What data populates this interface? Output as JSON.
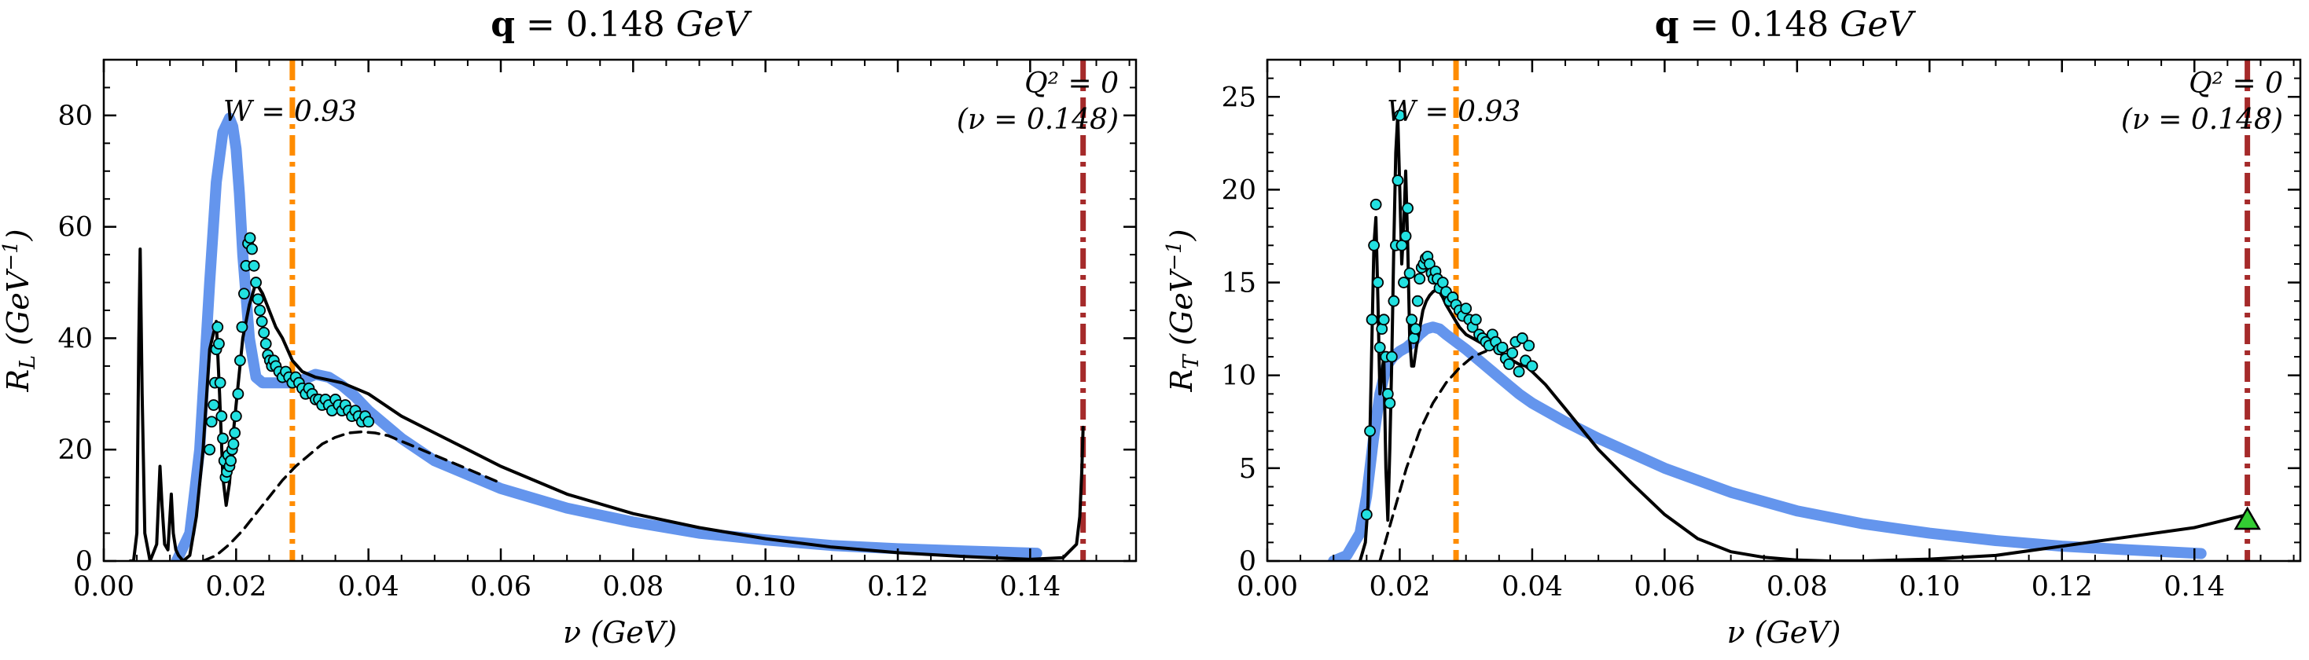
{
  "chart_data": [
    {
      "type": "line",
      "title": "q = 0.148 GeV",
      "title_bold": "q",
      "title_rest": " = 0.148 ",
      "title_unit": "GeV",
      "xlabel": "ν (GeV)",
      "ylabel": "R_L (GeV^-1)",
      "ylabel_main": "R",
      "ylabel_sub": "L",
      "ylabel_rest": " (GeV",
      "ylabel_sup": "−1",
      "ylabel_close": ")",
      "xlim": [
        0.0,
        0.156
      ],
      "ylim": [
        0,
        90
      ],
      "xticks": [
        "0.00",
        "0.02",
        "0.04",
        "0.06",
        "0.08",
        "0.10",
        "0.12",
        "0.14"
      ],
      "xtick_values": [
        0.0,
        0.02,
        0.04,
        0.06,
        0.08,
        0.1,
        0.12,
        0.14
      ],
      "yticks": [
        "0",
        "20",
        "40",
        "60",
        "80"
      ],
      "ytick_values": [
        0,
        20,
        40,
        60,
        80
      ],
      "vlines": [
        {
          "x": 0.0285,
          "color": "#ff8c00",
          "style": "dashdot",
          "label": "W = 0.93"
        },
        {
          "x": 0.148,
          "color": "#a52a2a",
          "style": "dashdot",
          "label_line1": "Q² = 0",
          "label_line2": "(ν = 0.148)"
        }
      ],
      "series": [
        {
          "style": "thick",
          "color": "#6495ed",
          "x": [
            0.011,
            0.013,
            0.0145,
            0.016,
            0.017,
            0.018,
            0.019,
            0.0195,
            0.02,
            0.0205,
            0.021,
            0.022,
            0.023,
            0.024,
            0.025,
            0.026,
            0.027,
            0.0285,
            0.03,
            0.032,
            0.034,
            0.036,
            0.038,
            0.04,
            0.045,
            0.05,
            0.06,
            0.07,
            0.08,
            0.09,
            0.1,
            0.11,
            0.12,
            0.13,
            0.141
          ],
          "y": [
            0,
            5,
            20,
            50,
            68,
            77,
            79.5,
            78,
            74,
            66,
            55,
            40,
            33,
            32,
            32,
            32,
            32,
            32,
            32.5,
            33.5,
            33,
            31.5,
            29.5,
            27,
            22,
            18,
            13,
            9.5,
            7,
            5,
            3.8,
            2.8,
            2.2,
            1.8,
            1.4
          ]
        },
        {
          "style": "solid",
          "color": "#000000",
          "x": [
            0.004,
            0.0045,
            0.005,
            0.0053,
            0.0055,
            0.0058,
            0.0062,
            0.007,
            0.008,
            0.0085,
            0.0088,
            0.0092,
            0.0097,
            0.0102,
            0.0105,
            0.0109,
            0.0113,
            0.012,
            0.013,
            0.014,
            0.015,
            0.016,
            0.017,
            0.0175,
            0.018,
            0.0185,
            0.019,
            0.0195,
            0.02,
            0.021,
            0.022,
            0.023,
            0.024,
            0.025,
            0.026,
            0.027,
            0.0285,
            0.03,
            0.032,
            0.034,
            0.036,
            0.038,
            0.04,
            0.045,
            0.05,
            0.055,
            0.06,
            0.07,
            0.08,
            0.09,
            0.1,
            0.11,
            0.12,
            0.13,
            0.14,
            0.145,
            0.147,
            0.1475,
            0.1478,
            0.148
          ],
          "y": [
            0,
            0,
            5,
            40,
            56,
            30,
            5,
            0,
            3,
            17,
            10,
            3,
            2,
            12,
            5,
            2,
            1,
            0,
            1,
            8,
            20,
            38,
            43,
            30,
            15,
            10,
            14,
            22,
            28,
            40,
            46,
            50,
            48,
            45,
            42,
            40,
            36,
            34,
            33,
            32.5,
            32,
            31,
            30,
            26,
            23,
            20,
            17,
            12,
            8.5,
            6,
            4,
            2.5,
            1.5,
            0.8,
            0.3,
            0.6,
            3,
            8,
            16,
            24
          ]
        },
        {
          "style": "dashed",
          "color": "#000000",
          "x": [
            0.015,
            0.017,
            0.019,
            0.021,
            0.023,
            0.025,
            0.027,
            0.029,
            0.031,
            0.033,
            0.035,
            0.037,
            0.039,
            0.041,
            0.043,
            0.045,
            0.048,
            0.051,
            0.055,
            0.06
          ],
          "y": [
            0,
            1,
            3,
            5.5,
            8.5,
            11.5,
            14.5,
            17,
            19,
            21,
            22.2,
            23,
            23.2,
            23,
            22.5,
            21.5,
            20,
            18.5,
            16.5,
            14
          ]
        }
      ],
      "scatter": {
        "color": "#22e0e0",
        "edge": "#000000",
        "x": [
          0.016,
          0.0163,
          0.0166,
          0.0168,
          0.017,
          0.0172,
          0.0174,
          0.0176,
          0.0178,
          0.018,
          0.0182,
          0.0184,
          0.0186,
          0.0188,
          0.019,
          0.0192,
          0.0194,
          0.0196,
          0.0198,
          0.02,
          0.0203,
          0.0206,
          0.0209,
          0.0212,
          0.0215,
          0.0218,
          0.0221,
          0.0224,
          0.0227,
          0.023,
          0.0233,
          0.0236,
          0.0239,
          0.0242,
          0.0245,
          0.0248,
          0.0251,
          0.0254,
          0.0257,
          0.026,
          0.0265,
          0.027,
          0.0275,
          0.028,
          0.0285,
          0.029,
          0.0295,
          0.03,
          0.0305,
          0.031,
          0.0315,
          0.032,
          0.0325,
          0.033,
          0.0335,
          0.034,
          0.0345,
          0.035,
          0.0355,
          0.036,
          0.0365,
          0.037,
          0.0375,
          0.038,
          0.0385,
          0.039,
          0.0395,
          0.04
        ],
        "y": [
          20,
          25,
          28,
          32,
          38,
          42,
          39,
          32,
          26,
          22,
          18,
          15,
          16,
          19,
          17,
          18,
          20,
          21,
          23,
          26,
          30,
          36,
          42,
          48,
          53,
          57,
          58,
          56,
          53,
          50,
          47,
          45,
          43,
          41,
          39,
          37,
          36,
          35,
          36,
          35,
          34,
          33,
          34,
          33,
          32,
          33,
          32,
          31,
          30,
          31,
          30,
          29,
          29,
          28,
          29,
          28,
          27,
          29,
          28,
          27,
          28,
          27,
          26,
          27,
          26,
          25,
          26,
          25
        ]
      }
    },
    {
      "type": "line",
      "title": "q = 0.148 GeV",
      "title_bold": "q",
      "title_rest": " = 0.148 ",
      "title_unit": "GeV",
      "xlabel": "ν (GeV)",
      "ylabel": "R_T (GeV^-1)",
      "ylabel_main": "R",
      "ylabel_sub": "T",
      "ylabel_rest": " (GeV",
      "ylabel_sup": "−1",
      "ylabel_close": ")",
      "xlim": [
        0.0,
        0.156
      ],
      "ylim": [
        0,
        27
      ],
      "xticks": [
        "0.00",
        "0.02",
        "0.04",
        "0.06",
        "0.08",
        "0.10",
        "0.12",
        "0.14"
      ],
      "xtick_values": [
        0.0,
        0.02,
        0.04,
        0.06,
        0.08,
        0.1,
        0.12,
        0.14
      ],
      "yticks": [
        "0",
        "5",
        "10",
        "15",
        "20",
        "25"
      ],
      "ytick_values": [
        0,
        5,
        10,
        15,
        20,
        25
      ],
      "vlines": [
        {
          "x": 0.0285,
          "color": "#ff8c00",
          "style": "dashdot",
          "label": "W = 0.93"
        },
        {
          "x": 0.148,
          "color": "#a52a2a",
          "style": "dashdot",
          "label_line1": "Q² = 0",
          "label_line2": "(ν = 0.148)"
        }
      ],
      "series": [
        {
          "style": "thick",
          "color": "#6495ed",
          "x": [
            0.01,
            0.012,
            0.014,
            0.015,
            0.016,
            0.017,
            0.018,
            0.019,
            0.02,
            0.021,
            0.022,
            0.023,
            0.024,
            0.025,
            0.026,
            0.027,
            0.0285,
            0.03,
            0.032,
            0.034,
            0.036,
            0.038,
            0.04,
            0.045,
            0.05,
            0.06,
            0.07,
            0.08,
            0.09,
            0.1,
            0.11,
            0.12,
            0.13,
            0.141
          ],
          "y": [
            0,
            0.3,
            1.5,
            3.5,
            6.5,
            9,
            10.5,
            11,
            11.3,
            11.5,
            11.8,
            12.2,
            12.5,
            12.6,
            12.5,
            12.2,
            11.8,
            11.4,
            10.8,
            10.2,
            9.6,
            9,
            8.5,
            7.5,
            6.6,
            5,
            3.7,
            2.7,
            2,
            1.5,
            1.1,
            0.8,
            0.6,
            0.4
          ]
        },
        {
          "style": "solid",
          "color": "#000000",
          "x": [
            0.014,
            0.0148,
            0.0152,
            0.0155,
            0.0158,
            0.0161,
            0.0164,
            0.0167,
            0.017,
            0.0173,
            0.0176,
            0.0179,
            0.0182,
            0.0185,
            0.0188,
            0.0191,
            0.0194,
            0.0197,
            0.02,
            0.0203,
            0.0206,
            0.0209,
            0.0212,
            0.0215,
            0.0218,
            0.0221,
            0.0225,
            0.023,
            0.0235,
            0.024,
            0.0245,
            0.025,
            0.0255,
            0.026,
            0.0265,
            0.027,
            0.028,
            0.029,
            0.03,
            0.031,
            0.032,
            0.033,
            0.034,
            0.035,
            0.036,
            0.037,
            0.038,
            0.039,
            0.04,
            0.042,
            0.045,
            0.05,
            0.055,
            0.06,
            0.065,
            0.07,
            0.075,
            0.08,
            0.085,
            0.09,
            0.1,
            0.11,
            0.12,
            0.13,
            0.14,
            0.148
          ],
          "y": [
            0,
            1,
            3,
            7,
            12,
            17,
            18.5,
            14,
            9,
            10,
            11,
            5,
            2.2,
            6,
            11,
            17,
            22,
            24,
            20,
            16,
            18,
            21,
            17,
            12,
            10.5,
            10.5,
            11.5,
            12.5,
            13.5,
            14,
            14.3,
            14.5,
            14.6,
            14.5,
            14.2,
            13.8,
            13.2,
            12.6,
            12.2,
            12,
            11.8,
            11.6,
            11.5,
            11.2,
            11,
            10.8,
            10.6,
            10.5,
            10.2,
            9.5,
            8.2,
            6,
            4.2,
            2.5,
            1.2,
            0.5,
            0.2,
            0.05,
            0,
            0,
            0.1,
            0.3,
            0.8,
            1.3,
            1.8,
            2.5
          ]
        },
        {
          "style": "dashed",
          "color": "#000000",
          "x": [
            0.017,
            0.019,
            0.021,
            0.023,
            0.025,
            0.027,
            0.029,
            0.031,
            0.033
          ],
          "y": [
            0,
            2.5,
            5,
            7,
            8.5,
            9.6,
            10.4,
            11,
            11.3
          ]
        }
      ],
      "scatter": {
        "color": "#22e0e0",
        "edge": "#000000",
        "x": [
          0.015,
          0.0155,
          0.0158,
          0.0161,
          0.0164,
          0.0167,
          0.017,
          0.0173,
          0.0176,
          0.0179,
          0.0182,
          0.0185,
          0.0188,
          0.0191,
          0.0194,
          0.0197,
          0.02,
          0.0203,
          0.0206,
          0.0209,
          0.0212,
          0.0215,
          0.0218,
          0.0221,
          0.0224,
          0.0227,
          0.023,
          0.0233,
          0.0236,
          0.0239,
          0.0242,
          0.0245,
          0.0248,
          0.0251,
          0.0254,
          0.0257,
          0.026,
          0.0265,
          0.027,
          0.0275,
          0.028,
          0.0285,
          0.029,
          0.0295,
          0.03,
          0.0305,
          0.031,
          0.0315,
          0.032,
          0.0325,
          0.033,
          0.0335,
          0.034,
          0.0345,
          0.035,
          0.0355,
          0.036,
          0.0365,
          0.037,
          0.0375,
          0.038,
          0.0385,
          0.039,
          0.0395,
          0.04
        ],
        "y": [
          2.5,
          7,
          13,
          17,
          19.2,
          15,
          11.5,
          12.5,
          13,
          11,
          9,
          8.5,
          11,
          14,
          17,
          20.5,
          24,
          17,
          15,
          17.5,
          19,
          15.5,
          13,
          12,
          12.5,
          14,
          15.2,
          15.8,
          16,
          16.3,
          16.4,
          16,
          15.5,
          15.2,
          15.6,
          15.2,
          14.7,
          15,
          14.5,
          14,
          14.2,
          13.8,
          13.5,
          13.2,
          13.6,
          13,
          12.6,
          13,
          12.2,
          12,
          11.8,
          11.6,
          12.2,
          11.8,
          11.4,
          11.5,
          10.9,
          10.6,
          11.2,
          11.8,
          10.2,
          12,
          10.8,
          11.6,
          10.5
        ]
      },
      "marker": {
        "x": 0.148,
        "y": 2.2,
        "color": "#33cc33",
        "shape": "triangle"
      }
    }
  ]
}
